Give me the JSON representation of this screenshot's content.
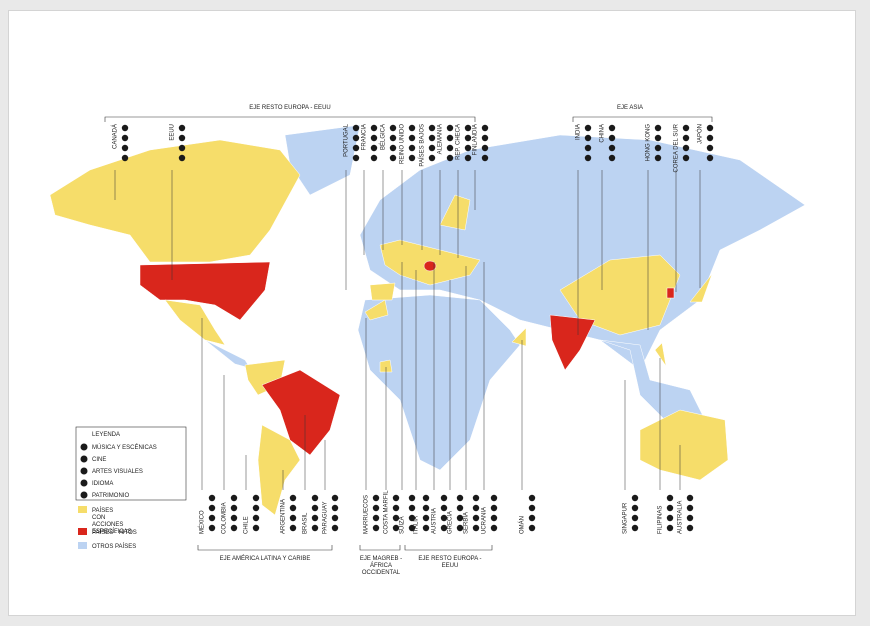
{
  "headers": [
    "EJE RESTO EUROPA - EEUU",
    "EJE ASIA",
    "EJE AMÉRICA LATINA Y CARIBE",
    "EJE MAGREB - ÁFRICA OCCIDENTAL",
    "EJE RESTO EUROPA - EEUU"
  ],
  "countries": [
    {
      "label": "CANADÁ"
    },
    {
      "label": "EEUU"
    },
    {
      "label": "PORTUGAL"
    },
    {
      "label": "FRANCIA"
    },
    {
      "label": "BÉLGICA"
    },
    {
      "label": "REINO UNIDO"
    },
    {
      "label": "PAÍSES BAJOS"
    },
    {
      "label": "ALEMANIA"
    },
    {
      "label": "REP. CHECA"
    },
    {
      "label": "FINLANDIA"
    },
    {
      "label": "INDIA"
    },
    {
      "label": "CHINA"
    },
    {
      "label": "HONG KONG"
    },
    {
      "label": "COREA DEL SUR"
    },
    {
      "label": "JAPÓN"
    },
    {
      "label": "MÉXICO"
    },
    {
      "label": "COLOMBIA"
    },
    {
      "label": "CHILE"
    },
    {
      "label": "ARGENTINA"
    },
    {
      "label": "BRASIL"
    },
    {
      "label": "PARAGUAY"
    },
    {
      "label": "MARRUECOS"
    },
    {
      "label": "COSTA MARFIL"
    },
    {
      "label": "SUIZA"
    },
    {
      "label": "ITALIA"
    },
    {
      "label": "AUSTRIA"
    },
    {
      "label": "GRECIA"
    },
    {
      "label": "SERBIA"
    },
    {
      "label": "UCRANIA"
    },
    {
      "label": "OMÁN"
    },
    {
      "label": "SINGAPUR"
    },
    {
      "label": "FILIPINAS"
    },
    {
      "label": "AUSTRALIA"
    }
  ],
  "legend": {
    "title": "LEYENDA",
    "items": [
      "MÚSICA Y ESCÉNICAS",
      "CINE",
      "ARTES VISUALES",
      "IDIOMA",
      "PATRIMONIO"
    ],
    "swatches": [
      "PAÍSES CON ACCIONES ESPECÍFICAS",
      "PAÍSES - HITOS",
      "OTROS PAÍSES"
    ]
  }
}
